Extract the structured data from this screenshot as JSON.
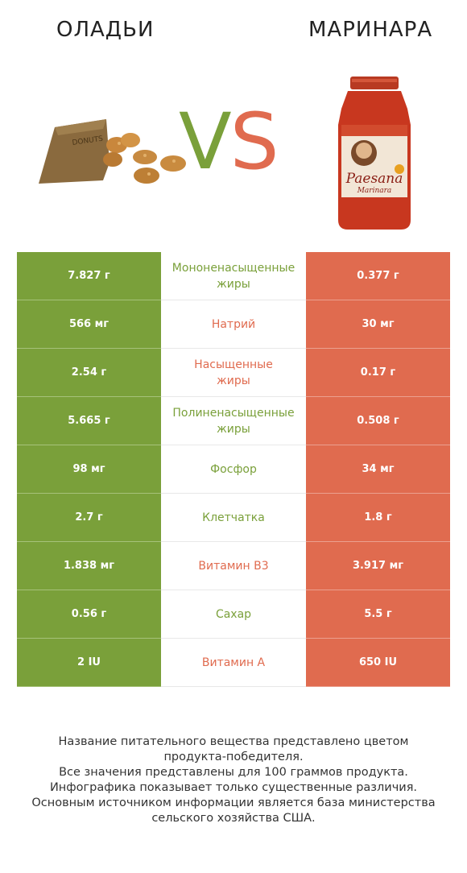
{
  "header": {
    "left_title": "ОЛАДЬИ",
    "right_title": "МАРИНАРА",
    "vs_v": "V",
    "vs_s": "S"
  },
  "colors": {
    "left": "#7aa03a",
    "right": "#e06b4f"
  },
  "jar_label": {
    "brand": "Paesana",
    "variety": "Marinara"
  },
  "bag_label": "DONUTS",
  "rows": [
    {
      "left": "7.827 г",
      "name_1": "Мононенасыщенные",
      "name_2": "жиры",
      "right": "0.377 г",
      "winner": "left"
    },
    {
      "left": "566 мг",
      "name_1": "Натрий",
      "name_2": "",
      "right": "30 мг",
      "winner": "right"
    },
    {
      "left": "2.54 г",
      "name_1": "Насыщенные",
      "name_2": "жиры",
      "right": "0.17 г",
      "winner": "right"
    },
    {
      "left": "5.665 г",
      "name_1": "Полиненасыщенные",
      "name_2": "жиры",
      "right": "0.508 г",
      "winner": "left"
    },
    {
      "left": "98 мг",
      "name_1": "Фосфор",
      "name_2": "",
      "right": "34 мг",
      "winner": "left"
    },
    {
      "left": "2.7 г",
      "name_1": "Клетчатка",
      "name_2": "",
      "right": "1.8 г",
      "winner": "left"
    },
    {
      "left": "1.838 мг",
      "name_1": "Витамин B3",
      "name_2": "",
      "right": "3.917 мг",
      "winner": "right"
    },
    {
      "left": "0.56 г",
      "name_1": "Сахар",
      "name_2": "",
      "right": "5.5 г",
      "winner": "left"
    },
    {
      "left": "2 IU",
      "name_1": "Витамин A",
      "name_2": "",
      "right": "650 IU",
      "winner": "right"
    }
  ],
  "footer": [
    "Название питательного вещества представлено цветом",
    "продукта-победителя.",
    "Все значения представлены для 100 граммов продукта.",
    "Инфографика показывает только существенные различия.",
    "Основным источником информации является база министерства",
    "сельского хозяйства США."
  ]
}
